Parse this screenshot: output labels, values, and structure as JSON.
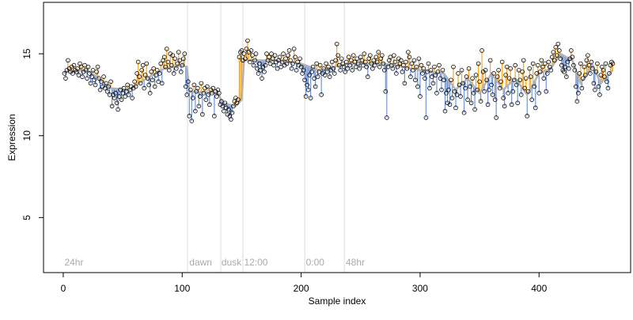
{
  "chart_data": {
    "type": "scatter",
    "xlabel": "Sample index",
    "ylabel": "Expression",
    "xlim": [
      -16.6,
      477
    ],
    "ylim": [
      1.64,
      18.14
    ],
    "xticks": [
      0,
      100,
      200,
      300,
      400
    ],
    "yticks": [
      5,
      10,
      15
    ],
    "point_color": "#000000",
    "fit_color": "#b3b3b3",
    "above_color": "#f5a623",
    "below_color": "#6f95d6",
    "vline_color": "#dddddd",
    "values": [
      13.8,
      13.5,
      14.0,
      14.6,
      14.1,
      13.9,
      14.2,
      13.8,
      14.3,
      14.0,
      13.9,
      14.1,
      13.7,
      14.4,
      14.2,
      13.6,
      13.9,
      14.3,
      14.0,
      13.5,
      14.2,
      13.8,
      13.2,
      13.6,
      14.0,
      13.4,
      13.1,
      13.9,
      14.2,
      13.5,
      12.8,
      13.3,
      13.0,
      13.6,
      12.9,
      13.2,
      12.7,
      13.0,
      12.5,
      13.3,
      11.8,
      12.5,
      12.3,
      12.6,
      12.0,
      11.6,
      12.4,
      12.8,
      12.2,
      12.6,
      12.9,
      12.4,
      12.7,
      13.1,
      12.5,
      12.8,
      13.0,
      12.3,
      12.9,
      13.3,
      13.0,
      13.8,
      14.5,
      13.6,
      13.2,
      14.0,
      14.3,
      12.9,
      13.7,
      14.4,
      13.5,
      13.1,
      12.6,
      13.9,
      13.4,
      14.1,
      13.0,
      13.7,
      14.0,
      13.3,
      13.8,
      14.4,
      13.2,
      14.6,
      14.8,
      14.2,
      15.3,
      14.5,
      14.0,
      15.0,
      14.3,
      14.9,
      13.8,
      14.7,
      14.1,
      14.4,
      15.1,
      14.6,
      13.9,
      14.3,
      14.7,
      15.0,
      13.0,
      12.5,
      13.3,
      11.2,
      12.8,
      10.9,
      12.3,
      13.1,
      11.5,
      12.7,
      12.9,
      11.8,
      12.4,
      13.2,
      11.3,
      12.6,
      12.9,
      12.2,
      13.0,
      12.5,
      11.9,
      12.8,
      12.6,
      12.9,
      11.2,
      12.7,
      12.4,
      12.8,
      12.6,
      11.9,
      12.1,
      11.8,
      11.5,
      12.0,
      11.7,
      11.3,
      11.6,
      11.2,
      11.0,
      11.4,
      11.8,
      12.1,
      12.3,
      12.0,
      12.2,
      14.8,
      15.1,
      15.2,
      14.6,
      15.0,
      14.7,
      15.3,
      15.8,
      15.1,
      14.5,
      15.2,
      14.9,
      14.3,
      14.6,
      15.0,
      14.1,
      13.8,
      14.4,
      14.0,
      13.5,
      14.2,
      13.9,
      14.3,
      15.0,
      14.6,
      14.8,
      14.4,
      15.0,
      14.7,
      14.3,
      14.9,
      14.5,
      14.1,
      14.6,
      14.8,
      14.2,
      14.5,
      15.0,
      14.3,
      14.7,
      14.4,
      14.9,
      15.2,
      14.6,
      14.1,
      14.4,
      15.3,
      14.8,
      14.0,
      14.5,
      14.3,
      14.7,
      14.2,
      13.8,
      14.0,
      13.4,
      12.4,
      13.1,
      12.8,
      13.7,
      12.3,
      13.9,
      14.2,
      13.5,
      13.0,
      14.4,
      13.6,
      13.9,
      14.3,
      12.5,
      13.8,
      14.1,
      13.7,
      14.4,
      13.9,
      14.2,
      13.6,
      14.0,
      14.5,
      14.1,
      13.8,
      14.6,
      15.6,
      14.9,
      14.3,
      14.0,
      14.7,
      14.4,
      14.2,
      13.9,
      14.5,
      14.1,
      14.8,
      14.3,
      14.6,
      14.0,
      14.9,
      14.5,
      14.2,
      14.7,
      14.4,
      14.1,
      14.8,
      14.6,
      14.3,
      15.0,
      14.5,
      14.2,
      13.6,
      14.7,
      14.9,
      14.4,
      14.1,
      14.6,
      14.3,
      14.8,
      14.5,
      15.1,
      14.2,
      14.7,
      14.9,
      14.4,
      14.0,
      12.7,
      11.1,
      14.2,
      14.6,
      14.8,
      14.3,
      14.1,
      14.9,
      14.5,
      13.8,
      14.2,
      14.7,
      14.4,
      14.6,
      13.9,
      14.3,
      13.2,
      14.5,
      14.1,
      15.1,
      14.8,
      13.6,
      14.4,
      14.0,
      14.6,
      13.4,
      14.2,
      13.0,
      14.7,
      12.4,
      14.3,
      13.8,
      14.1,
      13.5,
      11.1,
      13.9,
      14.4,
      12.9,
      14.0,
      13.6,
      13.2,
      14.2,
      13.7,
      12.6,
      13.9,
      14.3,
      13.5,
      12.8,
      14.0,
      13.4,
      11.5,
      12.6,
      12.0,
      12.8,
      11.9,
      13.4,
      12.3,
      14.2,
      12.7,
      11.7,
      12.5,
      13.8,
      13.1,
      12.4,
      14.0,
      13.2,
      11.4,
      12.9,
      13.6,
      12.2,
      14.1,
      13.0,
      12.0,
      13.5,
      12.6,
      11.6,
      13.7,
      12.8,
      14.4,
      13.3,
      12.1,
      15.2,
      13.9,
      12.7,
      14.0,
      13.4,
      11.9,
      12.8,
      14.6,
      13.1,
      12.5,
      13.8,
      12.2,
      11.1,
      13.6,
      14.0,
      12.9,
      13.3,
      14.5,
      12.3,
      11.8,
      13.7,
      14.2,
      12.6,
      13.5,
      14.1,
      11.9,
      12.7,
      13.4,
      14.3,
      13.1,
      12.0,
      14.0,
      13.4,
      12.5,
      13.9,
      14.6,
      12.9,
      13.5,
      11.2,
      12.7,
      14.1,
      13.6,
      12.2,
      14.4,
      13.0,
      11.7,
      13.8,
      14.3,
      12.6,
      13.9,
      14.6,
      14.2,
      13.5,
      14.4,
      12.7,
      13.8,
      14.5,
      14.2,
      14.0,
      14.8,
      15.1,
      14.6,
      15.4,
      14.9,
      15.6,
      15.2,
      14.7,
      14.3,
      14.0,
      13.9,
      14.2,
      13.6,
      14.5,
      14.1,
      14.7,
      15.2,
      14.8,
      14.3,
      14.0,
      13.0,
      12.1,
      12.6,
      13.8,
      14.4,
      12.9,
      13.5,
      14.2,
      13.7,
      14.6,
      14.9,
      14.3,
      13.8,
      14.5,
      14.1,
      13.2,
      12.8,
      13.9,
      14.4,
      13.0,
      12.5,
      13.7,
      14.2,
      14.0,
      13.6,
      14.4,
      13.3,
      12.9,
      13.8,
      14.3,
      14.5,
      14.4
    ],
    "fit": {
      "x": [
        1,
        20,
        30,
        40,
        55,
        70,
        85,
        100,
        104,
        106,
        130,
        134,
        145,
        150,
        152,
        175,
        200,
        215,
        240,
        270,
        300,
        320,
        330,
        340,
        350,
        360,
        370,
        380,
        390,
        400,
        410,
        418,
        428,
        435,
        445,
        452,
        462
      ],
      "values": [
        13.9,
        14.0,
        13.5,
        12.9,
        12.8,
        13.5,
        14.1,
        14.3,
        14.2,
        12.7,
        12.6,
        12.0,
        11.8,
        12.2,
        14.6,
        14.6,
        14.4,
        14.0,
        14.4,
        14.4,
        14.0,
        13.8,
        12.8,
        13.5,
        12.6,
        13.8,
        12.8,
        13.5,
        12.5,
        13.8,
        14.1,
        15.0,
        14.6,
        13.2,
        14.3,
        13.2,
        14.0
      ]
    },
    "vlines": [
      104.5,
      132.4,
      151,
      203,
      236.3
    ],
    "annotations": [
      {
        "x": 1,
        "text": "24hr"
      },
      {
        "x": 106,
        "text": "dawn"
      },
      {
        "x": 133,
        "text": "dusk"
      },
      {
        "x": 152,
        "text": "12:00"
      },
      {
        "x": 204,
        "text": "0:00"
      },
      {
        "x": 237.5,
        "text": "48hr"
      }
    ]
  }
}
